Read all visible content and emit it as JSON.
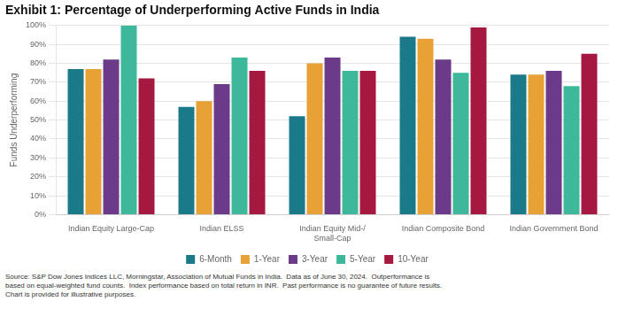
{
  "chart_data": {
    "type": "bar",
    "title": "Exhibit 1: Percentage of Underperforming Active Funds in India",
    "ylabel": "Funds Underperforming",
    "footnote": "Source: S&P Dow Jones Indices LLC, Morningstar, Association of Mutual Funds in India.  Data as of June 30, 2024.  Outperformance is\nbased on equal-weighted fund counts.  Index performance based on total return in INR.  Past performance is no guarantee of future results.\nChart is provided for illustrative purposes.",
    "categories": [
      "Indian Equity Large-Cap",
      "Indian ELSS",
      "Indian Equity Mid-/\nSmall-Cap",
      "Indian Composite Bond",
      "Indian Government Bond"
    ],
    "series": [
      {
        "name": "6-Month",
        "color": "#1a7a8a",
        "values": [
          77,
          57,
          52,
          94,
          74
        ]
      },
      {
        "name": "1-Year",
        "color": "#e8a135",
        "values": [
          77,
          60,
          80,
          93,
          74
        ]
      },
      {
        "name": "3-Year",
        "color": "#6b3b8a",
        "values": [
          82,
          69,
          83,
          82,
          76
        ]
      },
      {
        "name": "5-Year",
        "color": "#3db89a",
        "values": [
          100,
          83,
          76,
          75,
          68
        ]
      },
      {
        "name": "10-Year",
        "color": "#a51840",
        "values": [
          72,
          76,
          76,
          99,
          85
        ]
      }
    ],
    "ylim": [
      0,
      100
    ],
    "yticks": [
      {
        "value": 0,
        "label": "0%"
      },
      {
        "value": 10,
        "label": "10%"
      },
      {
        "value": 20,
        "label": "20%"
      },
      {
        "value": 30,
        "label": "30%"
      },
      {
        "value": 40,
        "label": "40%"
      },
      {
        "value": 50,
        "label": "50%"
      },
      {
        "value": 60,
        "label": "60%"
      },
      {
        "value": 70,
        "label": "70%"
      },
      {
        "value": 80,
        "label": "80%"
      },
      {
        "value": 90,
        "label": "90%"
      },
      {
        "value": 100,
        "label": "100%"
      }
    ],
    "grid": true,
    "legend": "bottom"
  }
}
